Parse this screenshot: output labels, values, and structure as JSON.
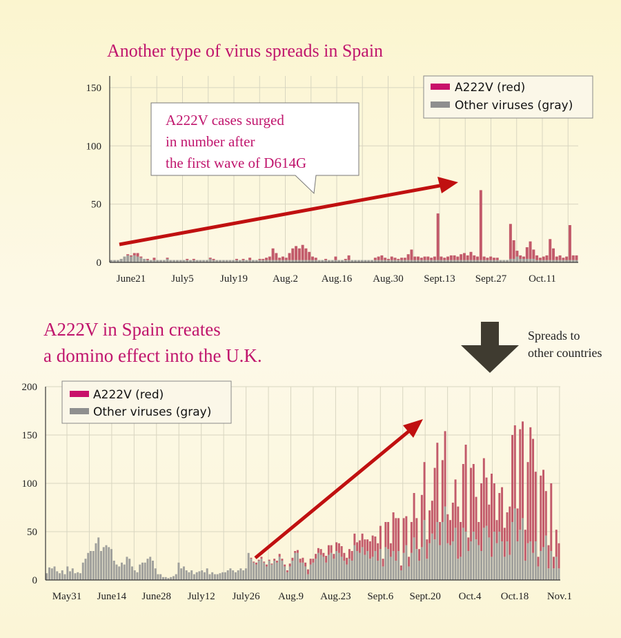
{
  "colors": {
    "accent_text": "#c0156d",
    "a222v": "#c25a6a",
    "other": "#a0a09c",
    "legend_a222v": "#c8106a",
    "legend_other": "#8f8f8f",
    "arrow": "#c01010",
    "down_arrow": "#3f3b30"
  },
  "top": {
    "title": "Another type of virus spreads in Spain",
    "callout_lines": [
      "A222V cases surged",
      "in number after",
      "the first wave of D614G"
    ],
    "legend": [
      "A222V (red)",
      "Other viruses (gray)"
    ]
  },
  "bottom": {
    "title_lines": [
      "A222V in Spain creates",
      "a domino effect into the U.K."
    ],
    "legend": [
      "A222V (red)",
      "Other viruses (gray)"
    ]
  },
  "side_note": {
    "icon": "down-arrow-icon",
    "lines": [
      "Spreads to",
      "other countries"
    ]
  },
  "chart_data": [
    {
      "type": "bar",
      "stacked": true,
      "region": "Spain",
      "title": "Another type of virus spreads in Spain",
      "ylim": [
        0,
        160
      ],
      "yticks": [
        0,
        50,
        100,
        150
      ],
      "xtick_labels": [
        "June21",
        "July5",
        "July19",
        "Aug.2",
        "Aug.16",
        "Aug.30",
        "Sept.13",
        "Sept.27",
        "Oct.11"
      ],
      "grid": true,
      "legend_position": "top-right",
      "series": [
        {
          "name": "A222V (red)",
          "values": [
            0,
            0,
            0,
            0,
            0,
            1,
            1,
            2,
            3,
            1,
            0,
            1,
            0,
            2,
            0,
            0,
            0,
            1,
            0,
            0,
            0,
            0,
            0,
            1,
            0,
            1,
            0,
            0,
            0,
            0,
            1,
            1,
            0,
            0,
            0,
            0,
            0,
            0,
            1,
            0,
            1,
            0,
            2,
            0,
            0,
            1,
            1,
            2,
            3,
            10,
            6,
            2,
            3,
            2,
            6,
            10,
            12,
            10,
            13,
            10,
            7,
            3,
            2,
            0,
            0,
            1,
            0,
            0,
            3,
            0,
            0,
            1,
            4,
            0,
            0,
            0,
            0,
            0,
            0,
            0,
            2,
            3,
            4,
            2,
            1,
            3,
            2,
            1,
            2,
            2,
            5,
            9,
            3,
            3,
            2,
            3,
            3,
            2,
            3,
            40,
            3,
            2,
            3,
            4,
            4,
            3,
            5,
            6,
            4,
            7,
            4,
            3,
            60,
            3,
            2,
            3,
            2,
            2,
            0,
            0,
            0,
            30,
            16,
            5,
            3,
            2,
            10,
            15,
            8,
            4,
            2,
            3,
            4,
            18,
            10,
            3,
            4,
            2,
            3,
            30,
            4,
            4
          ]
        },
        {
          "name": "Other viruses (gray)",
          "values": [
            2,
            2,
            2,
            3,
            5,
            6,
            5,
            6,
            5,
            4,
            3,
            2,
            2,
            2,
            2,
            2,
            2,
            3,
            2,
            2,
            2,
            2,
            2,
            2,
            2,
            2,
            2,
            2,
            2,
            2,
            3,
            2,
            2,
            2,
            2,
            2,
            2,
            2,
            2,
            2,
            2,
            2,
            2,
            2,
            2,
            2,
            2,
            2,
            2,
            2,
            2,
            2,
            2,
            2,
            2,
            2,
            2,
            2,
            2,
            2,
            2,
            2,
            2,
            2,
            2,
            2,
            2,
            2,
            2,
            2,
            2,
            2,
            2,
            2,
            2,
            2,
            2,
            2,
            2,
            2,
            2,
            2,
            2,
            2,
            2,
            2,
            2,
            2,
            2,
            2,
            2,
            2,
            2,
            2,
            2,
            2,
            2,
            2,
            2,
            2,
            2,
            2,
            2,
            2,
            2,
            2,
            2,
            2,
            2,
            2,
            2,
            2,
            2,
            2,
            2,
            2,
            2,
            2,
            2,
            2,
            2,
            3,
            3,
            5,
            3,
            3,
            3,
            3,
            3,
            2,
            2,
            2,
            2,
            2,
            2,
            2,
            2,
            2,
            2,
            2,
            2,
            2
          ]
        }
      ]
    },
    {
      "type": "bar",
      "stacked": true,
      "region": "U.K.",
      "title": "A222V in Spain creates a domino effect into the U.K.",
      "ylim": [
        0,
        200
      ],
      "yticks": [
        0,
        50,
        100,
        150,
        200
      ],
      "xtick_labels": [
        "May31",
        "June14",
        "June28",
        "July12",
        "July26",
        "Aug.9",
        "Aug.23",
        "Sept.6",
        "Sept.20",
        "Oct.4",
        "Oct.18",
        "Nov.1"
      ],
      "grid": true,
      "legend_position": "top-left",
      "series": [
        {
          "name": "A222V (red)",
          "values": [
            0,
            0,
            0,
            0,
            0,
            0,
            0,
            0,
            0,
            0,
            0,
            0,
            0,
            0,
            0,
            0,
            0,
            0,
            0,
            0,
            0,
            0,
            0,
            0,
            0,
            0,
            0,
            0,
            0,
            0,
            0,
            0,
            0,
            0,
            0,
            0,
            0,
            0,
            0,
            0,
            0,
            0,
            0,
            0,
            0,
            0,
            0,
            0,
            0,
            0,
            0,
            0,
            0,
            0,
            0,
            0,
            0,
            0,
            0,
            0,
            0,
            0,
            0,
            0,
            0,
            0,
            0,
            0,
            0,
            0,
            0,
            0,
            0,
            0,
            0,
            0,
            0,
            0,
            0,
            1,
            1,
            2,
            1,
            2,
            1,
            2,
            1,
            1,
            2,
            2,
            3,
            2,
            2,
            2,
            3,
            3,
            2,
            3,
            4,
            5,
            4,
            5,
            6,
            4,
            5,
            5,
            6,
            4,
            7,
            10,
            8,
            5,
            9,
            10,
            11,
            8,
            7,
            10,
            10,
            12,
            9,
            13,
            14,
            16,
            12,
            18,
            22,
            15,
            18,
            24,
            8,
            26,
            28,
            14,
            40,
            44,
            34,
            5,
            36,
            30,
            10,
            32,
            46,
            32,
            12,
            54,
            60,
            20,
            34,
            34,
            74,
            82,
            24,
            64,
            78,
            30,
            26,
            40,
            50,
            54,
            36,
            66,
            90,
            14,
            76,
            70,
            44,
            24,
            70,
            72,
            50,
            34,
            86,
            50,
            24,
            40,
            56,
            30,
            30,
            50,
            90,
            86,
            34,
            104,
            100,
            32,
            84,
            118,
            118,
            72,
            10,
            78,
            80,
            46,
            24,
            70,
            12,
            28,
            26
          ]
        },
        {
          "name": "Other viruses (gray)",
          "values": [
            7,
            13,
            12,
            14,
            9,
            7,
            10,
            6,
            14,
            9,
            12,
            7,
            8,
            7,
            18,
            22,
            28,
            30,
            30,
            38,
            44,
            30,
            34,
            36,
            34,
            32,
            20,
            16,
            14,
            18,
            16,
            24,
            22,
            14,
            10,
            8,
            16,
            18,
            18,
            22,
            24,
            20,
            12,
            6,
            6,
            3,
            3,
            2,
            3,
            4,
            6,
            18,
            12,
            14,
            10,
            8,
            10,
            6,
            8,
            9,
            10,
            8,
            12,
            6,
            8,
            6,
            6,
            7,
            8,
            8,
            10,
            12,
            10,
            8,
            10,
            12,
            10,
            12,
            28,
            22,
            18,
            16,
            20,
            22,
            18,
            14,
            20,
            16,
            20,
            18,
            24,
            20,
            14,
            8,
            14,
            20,
            28,
            28,
            18,
            18,
            14,
            6,
            16,
            18,
            22,
            28,
            26,
            24,
            18,
            26,
            28,
            22,
            30,
            28,
            24,
            20,
            16,
            22,
            20,
            36,
            30,
            28,
            34,
            26,
            30,
            22,
            24,
            30,
            20,
            32,
            14,
            34,
            32,
            24,
            30,
            20,
            30,
            10,
            28,
            36,
            14,
            28,
            44,
            32,
            20,
            34,
            62,
            22,
            38,
            48,
            42,
            60,
            36,
            60,
            76,
            38,
            36,
            40,
            54,
            22,
            24,
            54,
            50,
            30,
            40,
            50,
            42,
            36,
            30,
            54,
            56,
            44,
            24,
            50,
            38,
            50,
            40,
            24,
            40,
            26,
            60,
            74,
            40,
            52,
            64,
            20,
            38,
            40,
            28,
            40,
            14,
            30,
            34,
            46,
            12,
            30,
            12,
            24,
            12
          ]
        }
      ]
    }
  ]
}
